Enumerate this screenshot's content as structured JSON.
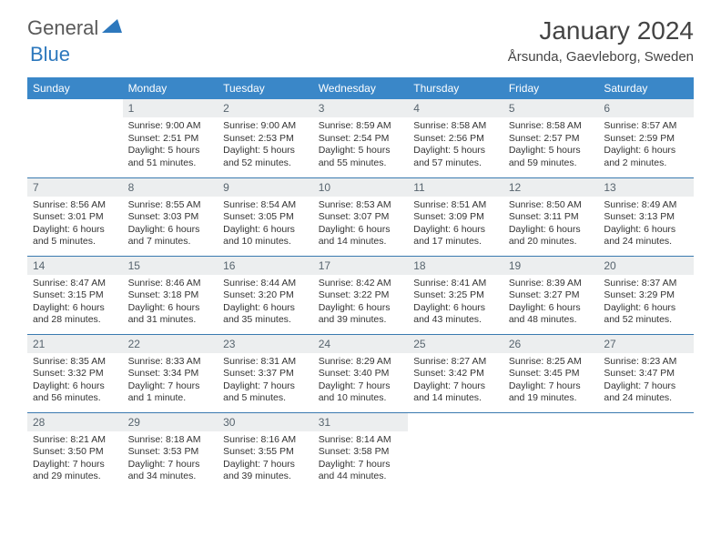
{
  "logo": {
    "general": "General",
    "blue": "Blue"
  },
  "title": "January 2024",
  "location": "Årsunda, Gaevleborg, Sweden",
  "colors": {
    "header_bg": "#3a87c8",
    "header_text": "#ffffff",
    "daynum_bg": "#eceeef",
    "daynum_text": "#57646e",
    "body_text": "#333333",
    "rule": "#3a7ab0",
    "logo_gray": "#595959",
    "logo_blue": "#2d78bd"
  },
  "day_headers": [
    "Sunday",
    "Monday",
    "Tuesday",
    "Wednesday",
    "Thursday",
    "Friday",
    "Saturday"
  ],
  "weeks": [
    [
      null,
      {
        "n": "1",
        "sr": "Sunrise: 9:00 AM",
        "ss": "Sunset: 2:51 PM",
        "d1": "Daylight: 5 hours",
        "d2": "and 51 minutes."
      },
      {
        "n": "2",
        "sr": "Sunrise: 9:00 AM",
        "ss": "Sunset: 2:53 PM",
        "d1": "Daylight: 5 hours",
        "d2": "and 52 minutes."
      },
      {
        "n": "3",
        "sr": "Sunrise: 8:59 AM",
        "ss": "Sunset: 2:54 PM",
        "d1": "Daylight: 5 hours",
        "d2": "and 55 minutes."
      },
      {
        "n": "4",
        "sr": "Sunrise: 8:58 AM",
        "ss": "Sunset: 2:56 PM",
        "d1": "Daylight: 5 hours",
        "d2": "and 57 minutes."
      },
      {
        "n": "5",
        "sr": "Sunrise: 8:58 AM",
        "ss": "Sunset: 2:57 PM",
        "d1": "Daylight: 5 hours",
        "d2": "and 59 minutes."
      },
      {
        "n": "6",
        "sr": "Sunrise: 8:57 AM",
        "ss": "Sunset: 2:59 PM",
        "d1": "Daylight: 6 hours",
        "d2": "and 2 minutes."
      }
    ],
    [
      {
        "n": "7",
        "sr": "Sunrise: 8:56 AM",
        "ss": "Sunset: 3:01 PM",
        "d1": "Daylight: 6 hours",
        "d2": "and 5 minutes."
      },
      {
        "n": "8",
        "sr": "Sunrise: 8:55 AM",
        "ss": "Sunset: 3:03 PM",
        "d1": "Daylight: 6 hours",
        "d2": "and 7 minutes."
      },
      {
        "n": "9",
        "sr": "Sunrise: 8:54 AM",
        "ss": "Sunset: 3:05 PM",
        "d1": "Daylight: 6 hours",
        "d2": "and 10 minutes."
      },
      {
        "n": "10",
        "sr": "Sunrise: 8:53 AM",
        "ss": "Sunset: 3:07 PM",
        "d1": "Daylight: 6 hours",
        "d2": "and 14 minutes."
      },
      {
        "n": "11",
        "sr": "Sunrise: 8:51 AM",
        "ss": "Sunset: 3:09 PM",
        "d1": "Daylight: 6 hours",
        "d2": "and 17 minutes."
      },
      {
        "n": "12",
        "sr": "Sunrise: 8:50 AM",
        "ss": "Sunset: 3:11 PM",
        "d1": "Daylight: 6 hours",
        "d2": "and 20 minutes."
      },
      {
        "n": "13",
        "sr": "Sunrise: 8:49 AM",
        "ss": "Sunset: 3:13 PM",
        "d1": "Daylight: 6 hours",
        "d2": "and 24 minutes."
      }
    ],
    [
      {
        "n": "14",
        "sr": "Sunrise: 8:47 AM",
        "ss": "Sunset: 3:15 PM",
        "d1": "Daylight: 6 hours",
        "d2": "and 28 minutes."
      },
      {
        "n": "15",
        "sr": "Sunrise: 8:46 AM",
        "ss": "Sunset: 3:18 PM",
        "d1": "Daylight: 6 hours",
        "d2": "and 31 minutes."
      },
      {
        "n": "16",
        "sr": "Sunrise: 8:44 AM",
        "ss": "Sunset: 3:20 PM",
        "d1": "Daylight: 6 hours",
        "d2": "and 35 minutes."
      },
      {
        "n": "17",
        "sr": "Sunrise: 8:42 AM",
        "ss": "Sunset: 3:22 PM",
        "d1": "Daylight: 6 hours",
        "d2": "and 39 minutes."
      },
      {
        "n": "18",
        "sr": "Sunrise: 8:41 AM",
        "ss": "Sunset: 3:25 PM",
        "d1": "Daylight: 6 hours",
        "d2": "and 43 minutes."
      },
      {
        "n": "19",
        "sr": "Sunrise: 8:39 AM",
        "ss": "Sunset: 3:27 PM",
        "d1": "Daylight: 6 hours",
        "d2": "and 48 minutes."
      },
      {
        "n": "20",
        "sr": "Sunrise: 8:37 AM",
        "ss": "Sunset: 3:29 PM",
        "d1": "Daylight: 6 hours",
        "d2": "and 52 minutes."
      }
    ],
    [
      {
        "n": "21",
        "sr": "Sunrise: 8:35 AM",
        "ss": "Sunset: 3:32 PM",
        "d1": "Daylight: 6 hours",
        "d2": "and 56 minutes."
      },
      {
        "n": "22",
        "sr": "Sunrise: 8:33 AM",
        "ss": "Sunset: 3:34 PM",
        "d1": "Daylight: 7 hours",
        "d2": "and 1 minute."
      },
      {
        "n": "23",
        "sr": "Sunrise: 8:31 AM",
        "ss": "Sunset: 3:37 PM",
        "d1": "Daylight: 7 hours",
        "d2": "and 5 minutes."
      },
      {
        "n": "24",
        "sr": "Sunrise: 8:29 AM",
        "ss": "Sunset: 3:40 PM",
        "d1": "Daylight: 7 hours",
        "d2": "and 10 minutes."
      },
      {
        "n": "25",
        "sr": "Sunrise: 8:27 AM",
        "ss": "Sunset: 3:42 PM",
        "d1": "Daylight: 7 hours",
        "d2": "and 14 minutes."
      },
      {
        "n": "26",
        "sr": "Sunrise: 8:25 AM",
        "ss": "Sunset: 3:45 PM",
        "d1": "Daylight: 7 hours",
        "d2": "and 19 minutes."
      },
      {
        "n": "27",
        "sr": "Sunrise: 8:23 AM",
        "ss": "Sunset: 3:47 PM",
        "d1": "Daylight: 7 hours",
        "d2": "and 24 minutes."
      }
    ],
    [
      {
        "n": "28",
        "sr": "Sunrise: 8:21 AM",
        "ss": "Sunset: 3:50 PM",
        "d1": "Daylight: 7 hours",
        "d2": "and 29 minutes."
      },
      {
        "n": "29",
        "sr": "Sunrise: 8:18 AM",
        "ss": "Sunset: 3:53 PM",
        "d1": "Daylight: 7 hours",
        "d2": "and 34 minutes."
      },
      {
        "n": "30",
        "sr": "Sunrise: 8:16 AM",
        "ss": "Sunset: 3:55 PM",
        "d1": "Daylight: 7 hours",
        "d2": "and 39 minutes."
      },
      {
        "n": "31",
        "sr": "Sunrise: 8:14 AM",
        "ss": "Sunset: 3:58 PM",
        "d1": "Daylight: 7 hours",
        "d2": "and 44 minutes."
      },
      null,
      null,
      null
    ]
  ]
}
